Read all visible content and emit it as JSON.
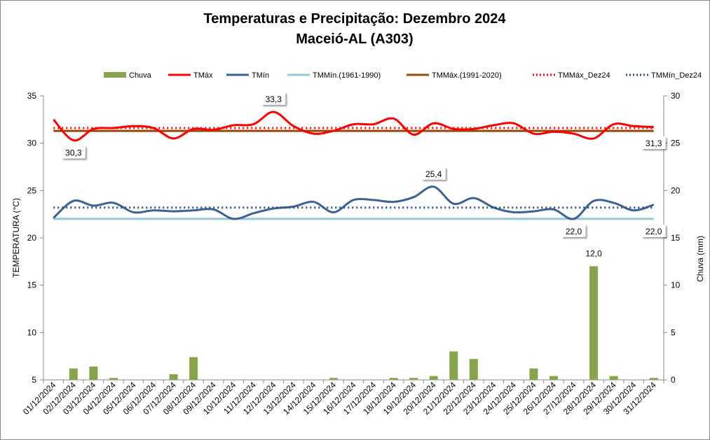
{
  "chart_data": {
    "type": "line",
    "title": "Temperaturas e Precipitação: Dezembro 2024",
    "subtitle": "Maceió-AL (A303)",
    "ylabel": "TEMPERATURA (°C)",
    "y2label": "Chuva (mm)",
    "ylim": [
      5,
      35
    ],
    "y2lim": [
      0,
      30
    ],
    "yticks": [
      "5",
      "10",
      "15",
      "20",
      "25",
      "30",
      "35"
    ],
    "y2ticks": [
      "0",
      "5",
      "10",
      "15",
      "20",
      "25",
      "30"
    ],
    "legend_position": "top",
    "categories": [
      "01/12/2024",
      "02/12/2024",
      "03/12/2024",
      "04/12/2024",
      "05/12/2024",
      "06/12/2024",
      "07/12/2024",
      "08/12/2024",
      "09/12/2024",
      "10/12/2024",
      "11/12/2024",
      "12/12/2024",
      "13/12/2024",
      "14/12/2024",
      "15/12/2024",
      "16/12/2024",
      "17/12/2024",
      "18/12/2024",
      "19/12/2024",
      "20/12/2024",
      "21/12/2024",
      "22/12/2024",
      "23/12/2024",
      "24/12/2024",
      "25/12/2024",
      "26/12/2024",
      "27/12/2024",
      "28/12/2024",
      "29/12/2024",
      "30/12/2024",
      "31/12/2024"
    ],
    "series": [
      {
        "name": "Chuva",
        "kind": "bar",
        "axis": "right",
        "color": "#86a44a",
        "values": [
          0,
          1.2,
          1.4,
          0.2,
          0,
          0,
          0.6,
          2.4,
          0,
          0,
          0,
          0,
          0,
          0,
          0.2,
          0,
          0,
          0.2,
          0.2,
          0.4,
          3.0,
          2.2,
          0,
          0,
          1.2,
          0.4,
          0,
          12.0,
          0.4,
          0,
          0.2
        ]
      },
      {
        "name": "TMáx",
        "kind": "line",
        "color": "#ff0000",
        "values": [
          32.5,
          30.3,
          31.5,
          31.6,
          31.8,
          31.6,
          30.5,
          31.5,
          31.4,
          31.9,
          32.0,
          33.3,
          31.8,
          31.0,
          31.3,
          32.0,
          32.0,
          32.6,
          30.9,
          32.1,
          31.5,
          31.5,
          31.9,
          32.1,
          31.0,
          31.2,
          31.0,
          30.5,
          32.0,
          31.8,
          31.7
        ]
      },
      {
        "name": "TMín",
        "kind": "line",
        "color": "#3a6194",
        "values": [
          22.1,
          23.9,
          23.4,
          23.7,
          22.7,
          22.9,
          22.8,
          22.9,
          23.0,
          22.0,
          22.6,
          23.1,
          23.3,
          23.8,
          22.7,
          24.0,
          24.0,
          23.8,
          24.3,
          25.4,
          23.6,
          24.2,
          23.2,
          22.7,
          22.8,
          23.0,
          22.0,
          23.9,
          23.7,
          22.9,
          23.5
        ]
      },
      {
        "name": "TMMín.(1961-1990)",
        "kind": "const",
        "color": "#92c7d9",
        "value": 22.0
      },
      {
        "name": "TMMáx.(1991-2020)",
        "kind": "const",
        "color": "#974706",
        "value": 31.3
      },
      {
        "name": "TMMáx_Dez24",
        "kind": "dotted",
        "color": "#ff0000",
        "value": 31.6
      },
      {
        "name": "TMMín_Dez24",
        "kind": "dotted",
        "color": "#2e4f85",
        "value": 23.2
      }
    ],
    "annotations": [
      {
        "text": "30,3",
        "series": "TMáx",
        "day": 2,
        "pos": "below"
      },
      {
        "text": "33,3",
        "series": "TMáx",
        "day": 12,
        "pos": "above"
      },
      {
        "text": "25,4",
        "series": "TMín",
        "day": 20,
        "pos": "above"
      },
      {
        "text": "22,0",
        "series": "TMín",
        "day": 27,
        "pos": "below"
      },
      {
        "text": "12,0",
        "series": "Chuva",
        "day": 28,
        "pos": "above"
      },
      {
        "text": "31,3",
        "series": "TMMáx.(1991-2020)",
        "day": 31,
        "pos": "below"
      },
      {
        "text": "22,0",
        "series": "TMMín.(1961-1990)",
        "day": 31,
        "pos": "below"
      }
    ]
  }
}
